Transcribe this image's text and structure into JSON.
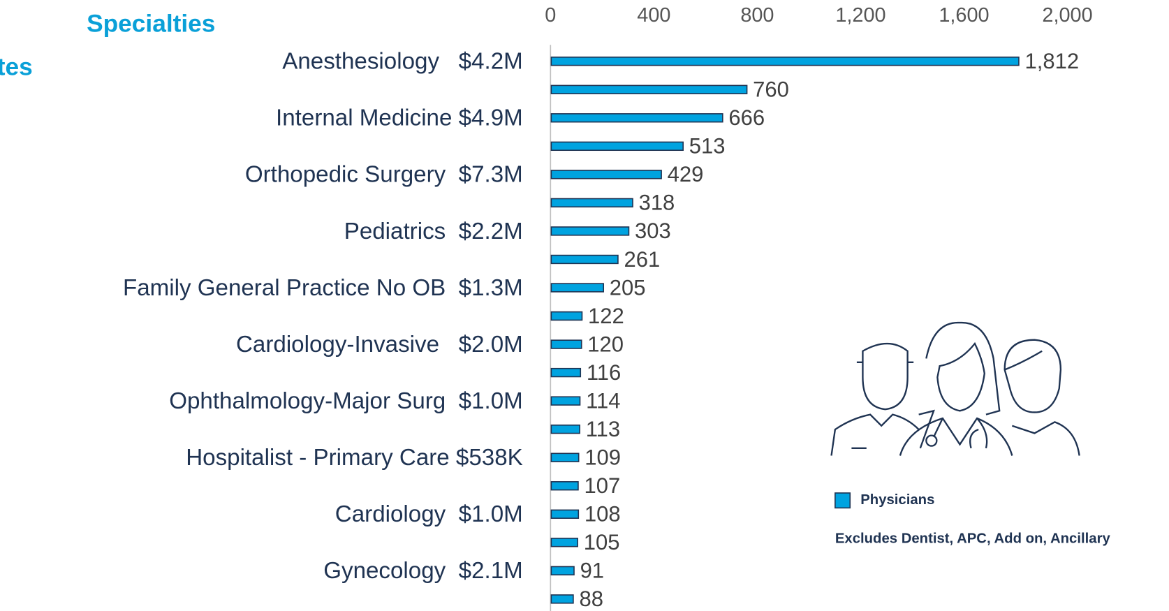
{
  "chart_data": {
    "type": "bar",
    "orientation": "horizontal",
    "title_lines": [
      "Specialties",
      "tes"
    ],
    "categories": [
      "Anesthesiology   $4.2M",
      null,
      "Internal Medicine $4.9M",
      null,
      "Orthopedic Surgery  $7.3M",
      null,
      "Pediatrics  $2.2M",
      null,
      "Family General Practice No OB  $1.3M",
      null,
      "Cardiology-Invasive   $2.0M",
      null,
      "Ophthalmology-Major Surg  $1.0M",
      null,
      "Hospitalist - Primary Care $538K",
      null,
      "Cardiology  $1.0M",
      null,
      "Gynecology  $2.1M",
      null
    ],
    "series": [
      {
        "name": "Physicians",
        "color": "#00a3e0",
        "values": [
          1812,
          760,
          666,
          513,
          429,
          318,
          303,
          261,
          205,
          122,
          120,
          116,
          114,
          113,
          109,
          107,
          108,
          105,
          91,
          88
        ],
        "value_labels": [
          "1,812",
          "760",
          "666",
          "513",
          "429",
          "318",
          "303",
          "261",
          "205",
          "122",
          "120",
          "116",
          "114",
          "113",
          "109",
          "107",
          "108",
          "105",
          "91",
          "88"
        ]
      }
    ],
    "xlim": [
      0,
      2000
    ],
    "xticks": [
      0,
      400,
      800,
      {
        "value": 1200,
        "label": "1,200"
      },
      {
        "value": 1600,
        "label": "1,600"
      },
      {
        "value": 2000,
        "label": "2,000"
      }
    ],
    "note": "Excludes Dentist, APC, Add on, Ancillary"
  }
}
